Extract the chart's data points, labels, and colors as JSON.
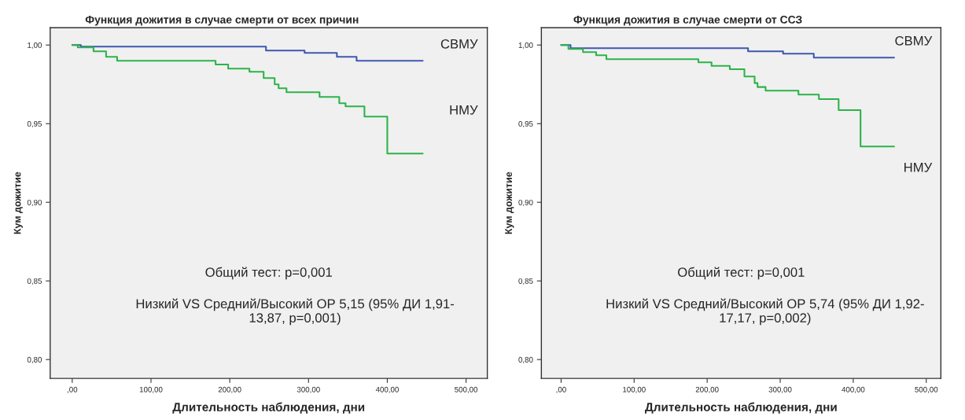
{
  "chart_data": [
    {
      "type": "step",
      "title": "Функция дожития в случае смерти от всех причин",
      "xlabel": "Длительность наблюдения, дни",
      "ylabel": "Кум дожитие",
      "xlim": [
        -28,
        527
      ],
      "ylim": [
        0.788,
        1.011
      ],
      "xticks": [
        {
          "value": 0,
          "label": ",00"
        },
        {
          "value": 100,
          "label": "100,00"
        },
        {
          "value": 200,
          "label": "200,00"
        },
        {
          "value": 300,
          "label": "300,00"
        },
        {
          "value": 400,
          "label": "400,00"
        },
        {
          "value": 500,
          "label": "500,00"
        }
      ],
      "yticks": [
        {
          "value": 0.8,
          "label": "0,80"
        },
        {
          "value": 0.85,
          "label": "0,85"
        },
        {
          "value": 0.9,
          "label": "0,90"
        },
        {
          "value": 0.95,
          "label": "0,95"
        },
        {
          "value": 1.0,
          "label": "1,00"
        }
      ],
      "grid": false,
      "legend": false,
      "series": [
        {
          "name": "СВМУ",
          "color": "#3f57b0",
          "x": [
            0,
            11,
            246,
            295,
            336,
            361,
            445
          ],
          "values": [
            1.0,
            0.999,
            0.9965,
            0.995,
            0.9925,
            0.99,
            0.99
          ]
        },
        {
          "name": "НМУ",
          "color": "#2db34a",
          "x": [
            0,
            7,
            27,
            43,
            57,
            182,
            198,
            225,
            243,
            257,
            262,
            272,
            314,
            339,
            347,
            371,
            400,
            445
          ],
          "values": [
            1.0,
            0.9985,
            0.996,
            0.9925,
            0.99,
            0.9876,
            0.985,
            0.983,
            0.979,
            0.975,
            0.9725,
            0.97,
            0.967,
            0.963,
            0.961,
            0.9545,
            0.931,
            0.931
          ]
        }
      ],
      "annotations": [
        "Общий тест: p=0,001",
        "Низкий VS Средний/Высокий ОР 5,15 (95% ДИ 1,91-\n13,87, p=0,001)"
      ]
    },
    {
      "type": "step",
      "title": "Функция дожития в случае смерти от ССЗ",
      "xlabel": "Длительность наблюдения, дни",
      "ylabel": "Кум дожитие",
      "xlim": [
        -27,
        520
      ],
      "ylim": [
        0.788,
        1.011
      ],
      "xticks": [
        {
          "value": 0,
          "label": ",00"
        },
        {
          "value": 100,
          "label": "100,00"
        },
        {
          "value": 200,
          "label": "200,00"
        },
        {
          "value": 300,
          "label": "300,00"
        },
        {
          "value": 400,
          "label": "400,00"
        },
        {
          "value": 500,
          "label": "500,00"
        }
      ],
      "yticks": [
        {
          "value": 0.8,
          "label": "0,80"
        },
        {
          "value": 0.85,
          "label": "0,85"
        },
        {
          "value": 0.9,
          "label": "0,90"
        },
        {
          "value": 0.95,
          "label": "0,95"
        },
        {
          "value": 1.0,
          "label": "1,00"
        }
      ],
      "grid": false,
      "legend": false,
      "series": [
        {
          "name": "СВМУ",
          "color": "#3f57b0",
          "x": [
            0,
            13,
            256,
            304,
            346,
            456
          ],
          "values": [
            1.0,
            0.998,
            0.996,
            0.9945,
            0.992,
            0.992
          ]
        },
        {
          "name": "НМУ",
          "color": "#2db34a",
          "x": [
            0,
            10,
            30,
            48,
            62,
            188,
            206,
            231,
            251,
            265,
            269,
            280,
            325,
            353,
            380,
            410,
            456
          ],
          "values": [
            1.0,
            0.9975,
            0.9955,
            0.9935,
            0.991,
            0.989,
            0.9867,
            0.9846,
            0.98,
            0.9758,
            0.9733,
            0.971,
            0.9685,
            0.9656,
            0.9586,
            0.9355,
            0.9355
          ]
        }
      ],
      "annotations": [
        "Общий тест: p=0,001",
        "Низкий VS Средний/Высокий ОР 5,74 (95% ДИ 1,92-\n17,17, p=0,002)"
      ]
    }
  ]
}
